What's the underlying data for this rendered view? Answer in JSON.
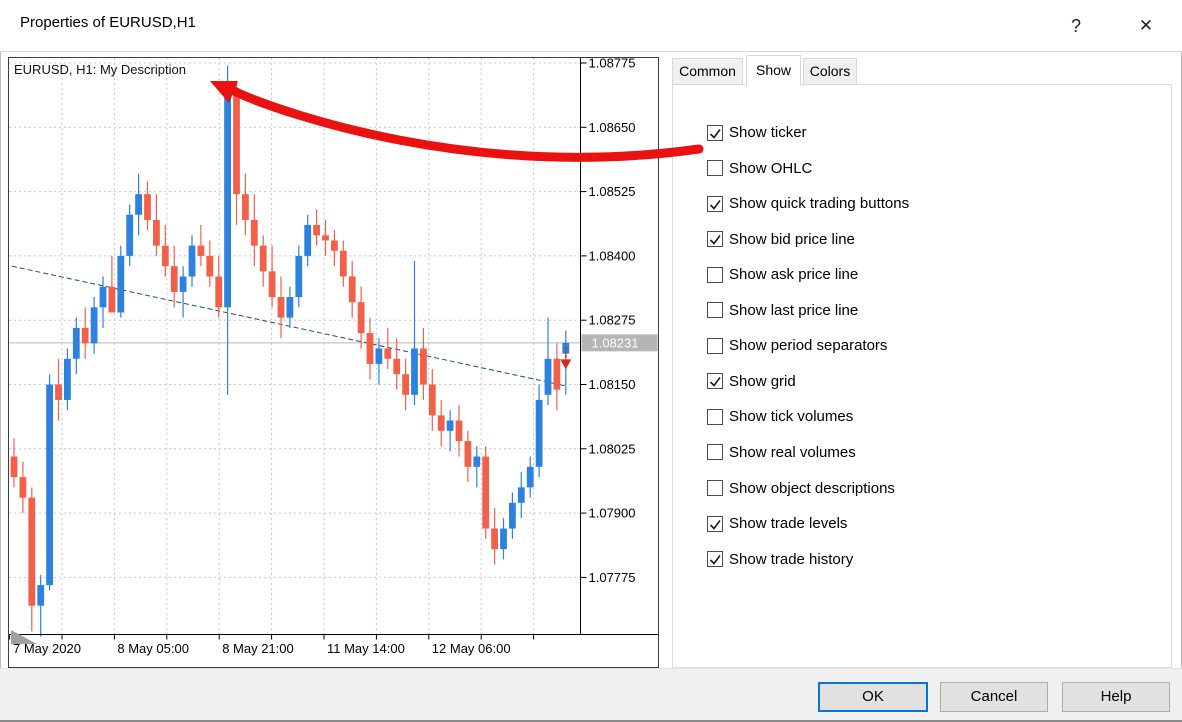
{
  "window": {
    "title": "Properties of EURUSD,H1",
    "help": "?",
    "close": "✕"
  },
  "tabs": [
    {
      "label": "Common",
      "selected": false
    },
    {
      "label": "Show",
      "selected": true
    },
    {
      "label": "Colors",
      "selected": false
    }
  ],
  "show_options": [
    {
      "label": "Show ticker",
      "checked": true
    },
    {
      "label": "Show OHLC",
      "checked": false
    },
    {
      "label": "Show quick trading buttons",
      "checked": true
    },
    {
      "label": "Show bid price line",
      "checked": true
    },
    {
      "label": "Show ask price line",
      "checked": false
    },
    {
      "label": "Show last price line",
      "checked": false
    },
    {
      "label": "Show period separators",
      "checked": false
    },
    {
      "label": "Show grid",
      "checked": true
    },
    {
      "label": "Show tick volumes",
      "checked": false
    },
    {
      "label": "Show real volumes",
      "checked": false
    },
    {
      "label": "Show object descriptions",
      "checked": false
    },
    {
      "label": "Show trade levels",
      "checked": true
    },
    {
      "label": "Show trade history",
      "checked": true
    }
  ],
  "buttons": {
    "ok": "OK",
    "cancel": "Cancel",
    "help": "Help"
  },
  "chart_data": {
    "type": "candlestick",
    "title": "EURUSD, H1:  My Description",
    "current_price": "1.08231",
    "current_price_value": 1.08231,
    "price_axis": {
      "labels": [
        "1.08775",
        "1.08650",
        "1.08525",
        "1.08400",
        "1.08275",
        "1.08150",
        "1.08025",
        "1.07900",
        "1.07775"
      ],
      "top": 1.08775,
      "step": 0.00125
    },
    "time_axis": {
      "labels": [
        "7 May 2020",
        "8 May 05:00",
        "8 May 21:00",
        "11 May 14:00",
        "12 May 06:00"
      ]
    },
    "grid": true,
    "trendline": {
      "from_price": 1.0838,
      "to_price": 1.082
    },
    "trade_marker": {
      "type": "sell-arrow",
      "price": 1.08195
    },
    "candles": [
      [
        1.0801,
        1.08045,
        1.0795,
        1.0797
      ],
      [
        1.0797,
        1.08,
        1.079,
        1.0793
      ],
      [
        1.0793,
        1.0795,
        1.0767,
        1.0772
      ],
      [
        1.0772,
        1.0778,
        1.0766,
        1.0776
      ],
      [
        1.0776,
        1.0817,
        1.0775,
        1.0815
      ],
      [
        1.0815,
        1.082,
        1.0808,
        1.0812
      ],
      [
        1.0812,
        1.0822,
        1.081,
        1.082
      ],
      [
        1.082,
        1.0828,
        1.0817,
        1.0826
      ],
      [
        1.0826,
        1.083,
        1.082,
        1.0823
      ],
      [
        1.0823,
        1.0832,
        1.0821,
        1.083
      ],
      [
        1.083,
        1.0836,
        1.0826,
        1.0834
      ],
      [
        1.0834,
        1.084,
        1.083,
        1.0829
      ],
      [
        1.0829,
        1.0842,
        1.0828,
        1.084
      ],
      [
        1.084,
        1.085,
        1.0838,
        1.0848
      ],
      [
        1.0848,
        1.0856,
        1.0844,
        1.0852
      ],
      [
        1.0852,
        1.08545,
        1.0845,
        1.0847
      ],
      [
        1.0847,
        1.0852,
        1.084,
        1.0842
      ],
      [
        1.0842,
        1.0846,
        1.0836,
        1.0838
      ],
      [
        1.0838,
        1.0842,
        1.083,
        1.0833
      ],
      [
        1.0833,
        1.0838,
        1.0828,
        1.0836
      ],
      [
        1.0836,
        1.0844,
        1.0834,
        1.0842
      ],
      [
        1.0842,
        1.0846,
        1.0838,
        1.084
      ],
      [
        1.084,
        1.0843,
        1.0834,
        1.0836
      ],
      [
        1.0836,
        1.084,
        1.0828,
        1.083
      ],
      [
        1.083,
        1.0877,
        1.0813,
        1.0872
      ],
      [
        1.0872,
        1.0874,
        1.0846,
        1.0852
      ],
      [
        1.0852,
        1.0856,
        1.0844,
        1.0847
      ],
      [
        1.0847,
        1.0852,
        1.0838,
        1.0842
      ],
      [
        1.0842,
        1.0844,
        1.0834,
        1.0837
      ],
      [
        1.0837,
        1.0842,
        1.083,
        1.0832
      ],
      [
        1.0832,
        1.0836,
        1.0824,
        1.0828
      ],
      [
        1.0828,
        1.0834,
        1.0826,
        1.0832
      ],
      [
        1.0832,
        1.0842,
        1.083,
        1.084
      ],
      [
        1.084,
        1.0848,
        1.0838,
        1.0846
      ],
      [
        1.0846,
        1.0849,
        1.0842,
        1.0844
      ],
      [
        1.0844,
        1.0847,
        1.084,
        1.0843
      ],
      [
        1.0843,
        1.0845,
        1.0838,
        1.0841
      ],
      [
        1.0841,
        1.0843,
        1.0834,
        1.0836
      ],
      [
        1.0836,
        1.0839,
        1.0828,
        1.0831
      ],
      [
        1.0831,
        1.0834,
        1.0822,
        1.0825
      ],
      [
        1.0825,
        1.0828,
        1.0816,
        1.0819
      ],
      [
        1.0819,
        1.0824,
        1.0815,
        1.0822
      ],
      [
        1.0822,
        1.0826,
        1.0818,
        1.082
      ],
      [
        1.082,
        1.0824,
        1.0814,
        1.0817
      ],
      [
        1.0817,
        1.082,
        1.081,
        1.0813
      ],
      [
        1.0813,
        1.0839,
        1.0811,
        1.0822
      ],
      [
        1.0822,
        1.0826,
        1.0812,
        1.0815
      ],
      [
        1.0815,
        1.0818,
        1.0806,
        1.0809
      ],
      [
        1.0809,
        1.0812,
        1.0803,
        1.0806
      ],
      [
        1.0806,
        1.081,
        1.0802,
        1.0808
      ],
      [
        1.0808,
        1.0811,
        1.0801,
        1.0804
      ],
      [
        1.0804,
        1.0806,
        1.0796,
        1.0799
      ],
      [
        1.0799,
        1.0803,
        1.0795,
        1.0801
      ],
      [
        1.0801,
        1.0803,
        1.0785,
        1.0787
      ],
      [
        1.0787,
        1.0791,
        1.078,
        1.0783
      ],
      [
        1.0783,
        1.0789,
        1.0781,
        1.0787
      ],
      [
        1.0787,
        1.0794,
        1.0785,
        1.0792
      ],
      [
        1.0792,
        1.0798,
        1.0789,
        1.0795
      ],
      [
        1.0795,
        1.0801,
        1.0793,
        1.0799
      ],
      [
        1.0799,
        1.0815,
        1.0797,
        1.0812
      ],
      [
        1.0813,
        1.0828,
        1.0811,
        1.082
      ],
      [
        1.082,
        1.0823,
        1.081,
        1.0814
      ],
      [
        1.0821,
        1.08255,
        1.0813,
        1.08231
      ]
    ],
    "colors": {
      "up": "#2d82e0",
      "down": "#f2604a",
      "grid": "#c8c8c8",
      "axis": "#000000",
      "trendline": "#1f4e79",
      "price_line": "#b8b8b8",
      "badge_bg": "#b5b5b5",
      "badge_text": "#ffffff",
      "annotation": "#ea1111",
      "marker": "#d8281c",
      "corner": "#a0a0a0"
    }
  }
}
